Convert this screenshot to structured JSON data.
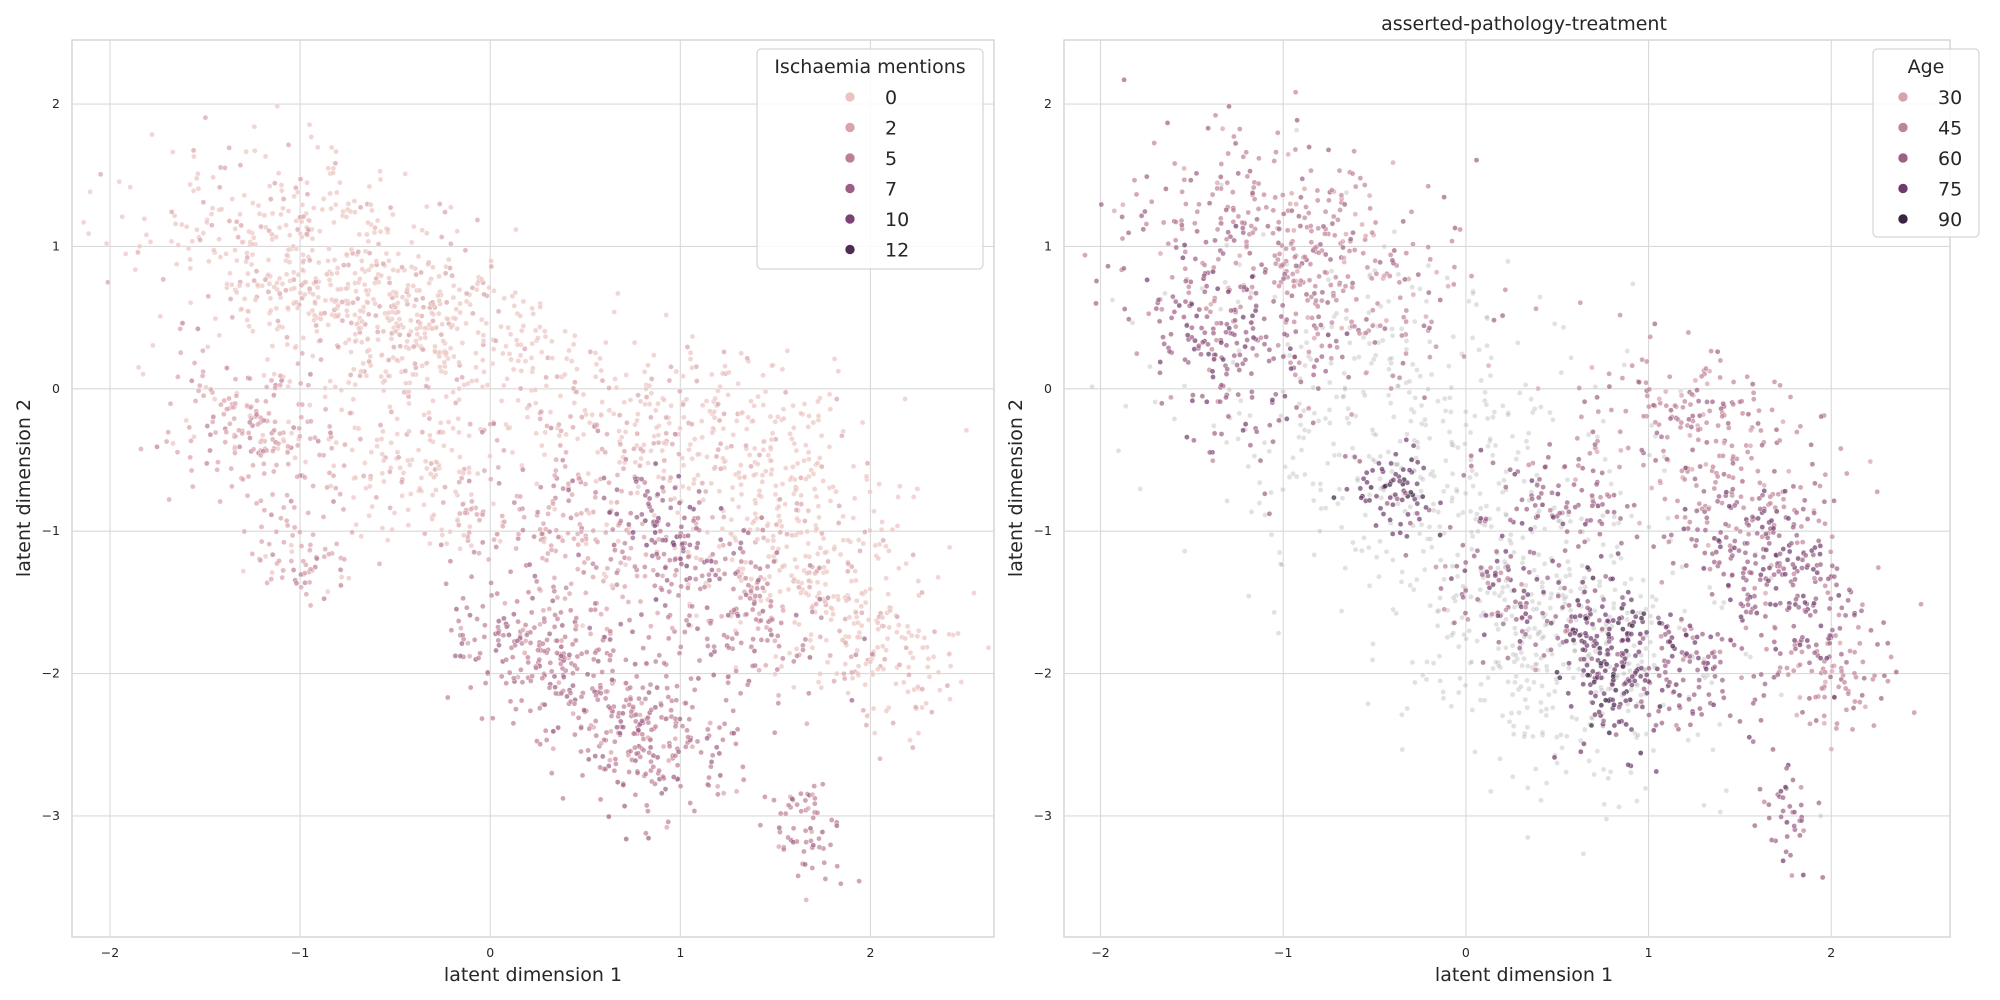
{
  "chart_data": [
    {
      "type": "scatter",
      "title": "",
      "xlabel": "latent dimension 1",
      "ylabel": "latent dimension 2",
      "xlim": [
        -2.2,
        2.65
      ],
      "ylim": [
        -3.85,
        2.45
      ],
      "xticks": [
        -2,
        -1,
        0,
        1,
        2
      ],
      "yticks": [
        -3,
        -2,
        -1,
        0,
        1,
        2
      ],
      "xtick_labels": [
        "−2",
        "−1",
        "0",
        "1",
        "2"
      ],
      "ytick_labels": [
        "−3",
        "−2",
        "−1",
        "0",
        "1",
        "2"
      ],
      "grid": true,
      "legend": {
        "title": "Ischaemia mentions",
        "position": "top-right",
        "entries": [
          {
            "label": "0",
            "color": "#ebc4c0"
          },
          {
            "label": "2",
            "color": "#d8a3aa"
          },
          {
            "label": "5",
            "color": "#bd7f95"
          },
          {
            "label": "7",
            "color": "#9d5f86"
          },
          {
            "label": "10",
            "color": "#7b4375"
          },
          {
            "label": "12",
            "color": "#4e2b55"
          }
        ]
      },
      "series_description": "dense point cloud running from upper-left to lower-right; most points 0 mentions, higher counts in lower-middle region",
      "clusters": [
        {
          "x": -0.85,
          "y": 0.85,
          "sx": 0.5,
          "sy": 0.38,
          "n": 520,
          "level": 0
        },
        {
          "x": -0.3,
          "y": 0.35,
          "sx": 0.45,
          "sy": 0.3,
          "n": 300,
          "level": 0
        },
        {
          "x": 1.25,
          "y": -0.35,
          "sx": 0.4,
          "sy": 0.35,
          "n": 300,
          "level": 0
        },
        {
          "x": 1.65,
          "y": -1.2,
          "sx": 0.32,
          "sy": 0.35,
          "n": 260,
          "level": 0
        },
        {
          "x": 2.05,
          "y": -1.9,
          "sx": 0.22,
          "sy": 0.25,
          "n": 120,
          "level": 0
        },
        {
          "x": -1.2,
          "y": -0.3,
          "sx": 0.25,
          "sy": 0.25,
          "n": 200,
          "level": 1
        },
        {
          "x": 0.4,
          "y": -0.9,
          "sx": 0.35,
          "sy": 0.35,
          "n": 240,
          "level": 1
        },
        {
          "x": 0.3,
          "y": -1.9,
          "sx": 0.3,
          "sy": 0.25,
          "n": 220,
          "level": 2
        },
        {
          "x": 0.8,
          "y": -2.4,
          "sx": 0.25,
          "sy": 0.3,
          "n": 260,
          "level": 2
        },
        {
          "x": 1.3,
          "y": -1.6,
          "sx": 0.25,
          "sy": 0.3,
          "n": 180,
          "level": 2
        },
        {
          "x": 1.7,
          "y": -3.1,
          "sx": 0.1,
          "sy": 0.2,
          "n": 60,
          "level": 2
        },
        {
          "x": -0.4,
          "y": -0.6,
          "sx": 0.25,
          "sy": 0.25,
          "n": 130,
          "level": 0
        },
        {
          "x": -1.0,
          "y": -1.2,
          "sx": 0.15,
          "sy": 0.15,
          "n": 70,
          "level": 1
        },
        {
          "x": 0.9,
          "y": -1.0,
          "sx": 0.2,
          "sy": 0.2,
          "n": 90,
          "level": 3
        }
      ]
    },
    {
      "type": "scatter",
      "title": "asserted-pathology-treatment",
      "xlabel": "latent dimension 1",
      "ylabel": "latent dimension 2",
      "xlim": [
        -2.2,
        2.65
      ],
      "ylim": [
        -3.85,
        2.45
      ],
      "xticks": [
        -2,
        -1,
        0,
        1,
        2
      ],
      "yticks": [
        -3,
        -2,
        -1,
        0,
        1,
        2
      ],
      "xtick_labels": [
        "−2",
        "−1",
        "0",
        "1",
        "2"
      ],
      "ytick_labels": [
        "−3",
        "−2",
        "−1",
        "0",
        "1",
        "2"
      ],
      "grid": true,
      "legend": {
        "title": "Age",
        "position": "top-right",
        "entries": [
          {
            "label": "30",
            "color": "#d8a3aa"
          },
          {
            "label": "45",
            "color": "#c0849a"
          },
          {
            "label": "60",
            "color": "#9d5f86"
          },
          {
            "label": "75",
            "color": "#6e3a6b"
          },
          {
            "label": "90",
            "color": "#3b2342"
          }
        ]
      },
      "background_color": "#a8a8a8",
      "series_description": "same point cloud; grey background points, colored by age for points with the asserted pathology treatment",
      "clusters": [
        {
          "x": -0.3,
          "y": -0.3,
          "sx": 0.6,
          "sy": 0.6,
          "n": 420,
          "level": -1
        },
        {
          "x": 0.5,
          "y": -1.8,
          "sx": 0.45,
          "sy": 0.5,
          "n": 420,
          "level": -1
        },
        {
          "x": -0.9,
          "y": 0.9,
          "sx": 0.45,
          "sy": 0.4,
          "n": 420,
          "level": 1
        },
        {
          "x": -1.3,
          "y": 0.3,
          "sx": 0.25,
          "sy": 0.35,
          "n": 200,
          "level": 2
        },
        {
          "x": 1.3,
          "y": -0.4,
          "sx": 0.35,
          "sy": 0.35,
          "n": 260,
          "level": 1
        },
        {
          "x": 1.7,
          "y": -1.3,
          "sx": 0.25,
          "sy": 0.3,
          "n": 260,
          "level": 2
        },
        {
          "x": 2.0,
          "y": -2.0,
          "sx": 0.2,
          "sy": 0.2,
          "n": 90,
          "level": 1
        },
        {
          "x": 0.8,
          "y": -1.9,
          "sx": 0.15,
          "sy": 0.3,
          "n": 200,
          "level": 3
        },
        {
          "x": 0.3,
          "y": -1.5,
          "sx": 0.25,
          "sy": 0.2,
          "n": 110,
          "level": 2
        },
        {
          "x": 1.2,
          "y": -2.0,
          "sx": 0.2,
          "sy": 0.25,
          "n": 100,
          "level": 2
        },
        {
          "x": -0.4,
          "y": -0.7,
          "sx": 0.12,
          "sy": 0.15,
          "n": 70,
          "level": 3
        },
        {
          "x": 0.5,
          "y": -0.8,
          "sx": 0.25,
          "sy": 0.2,
          "n": 90,
          "level": 2
        },
        {
          "x": 1.75,
          "y": -3.0,
          "sx": 0.08,
          "sy": 0.2,
          "n": 40,
          "level": 2
        }
      ]
    }
  ]
}
